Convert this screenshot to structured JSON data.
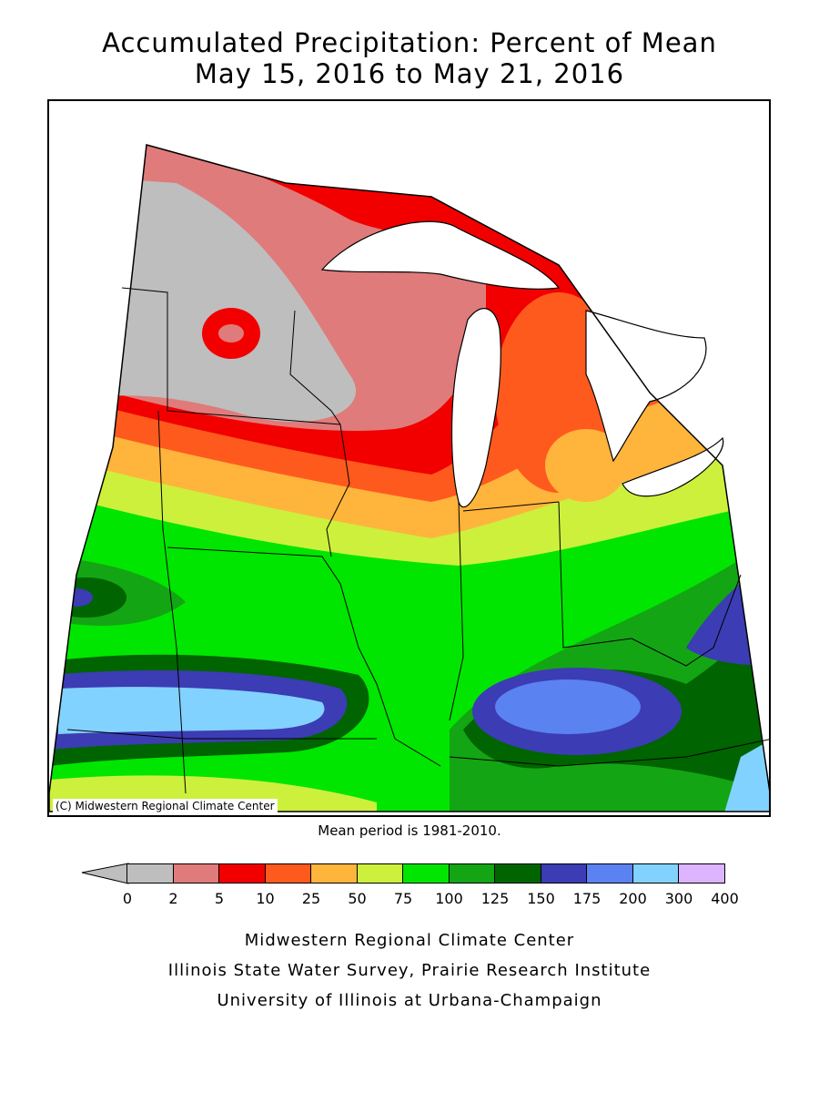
{
  "title": {
    "line1": "Accumulated Precipitation: Percent of Mean",
    "line2": "May 15, 2016 to May 21, 2016"
  },
  "map": {
    "credit": "(C) Midwestern Regional Climate Center",
    "mean_period": "Mean period is 1981-2010."
  },
  "legend": {
    "ticks": [
      "0",
      "2",
      "5",
      "10",
      "25",
      "50",
      "75",
      "100",
      "125",
      "150",
      "175",
      "200",
      "300",
      "400"
    ],
    "colors": [
      "#bebebe",
      "#e07b7b",
      "#f20000",
      "#ff5a1e",
      "#ffb43c",
      "#cdf03c",
      "#00e600",
      "#14a514",
      "#006400",
      "#3c3cb4",
      "#5a82f0",
      "#82d2ff",
      "#dcb4ff"
    ],
    "below_color": "#bebebe"
  },
  "footer": {
    "line1": "Midwestern Regional Climate Center",
    "line2": "Illinois State Water Survey, Prairie Research Institute",
    "line3": "University of Illinois at Urbana-Champaign"
  }
}
